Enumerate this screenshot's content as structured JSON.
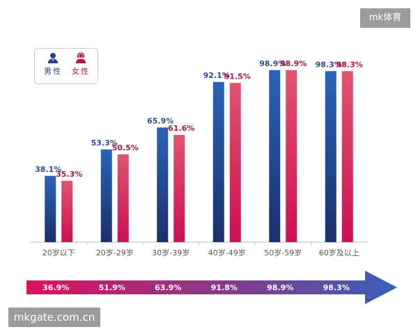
{
  "watermark_top": "mk体育",
  "watermark_bottom": "mkgate.com.cn",
  "legend": {
    "male": "男性",
    "female": "女性"
  },
  "colors": {
    "male_top": "#2b63b8",
    "male_bottom": "#1b2f6b",
    "female_top": "#e0556e",
    "female_bottom": "#cc0f55",
    "male_label": "#2a4f9a",
    "female_label": "#b5124a",
    "arrow_start": "#e0105a",
    "arrow_end": "#3a5fb8"
  },
  "chart_data": {
    "type": "bar",
    "categories": [
      "20岁以下",
      "20岁-29岁",
      "30岁-39岁",
      "40岁-49岁",
      "50岁-59岁",
      "60岁及以上"
    ],
    "series": [
      {
        "name": "男性",
        "values": [
          38.1,
          53.3,
          65.9,
          92.1,
          98.9,
          98.3
        ],
        "labels": [
          "38.1%",
          "53.3%",
          "65.9%",
          "92.1%",
          "98.9%",
          "98.3%"
        ]
      },
      {
        "name": "女性",
        "values": [
          35.3,
          50.5,
          61.6,
          91.5,
          98.9,
          98.3
        ],
        "labels": [
          "35.3%",
          "50.5%",
          "61.6%",
          "91.5%",
          "98.9%",
          "98.3%"
        ]
      }
    ],
    "totals": [
      36.9,
      51.9,
      63.9,
      91.8,
      98.9,
      98.3
    ],
    "total_labels": [
      "36.9%",
      "51.9%",
      "63.9%",
      "91.8%",
      "98.9%",
      "98.3%"
    ],
    "ylim": [
      0,
      100
    ],
    "grid": false
  }
}
